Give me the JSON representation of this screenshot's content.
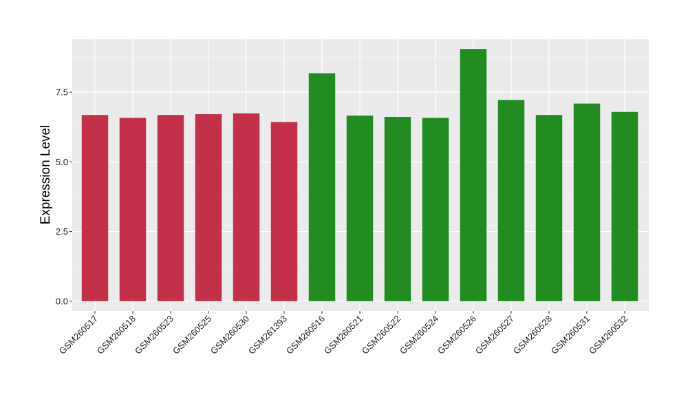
{
  "chart_data": {
    "type": "bar",
    "title": "",
    "xlabel": "",
    "ylabel": "Expression Level",
    "ylim": [
      -0.35,
      9.4
    ],
    "yticks": [
      0,
      2.5,
      5,
      7.5
    ],
    "ytick_labels": [
      "0.0",
      "2.5",
      "5.0",
      "7.5"
    ],
    "grid": true,
    "legend": "none",
    "categories": [
      "GSM260517",
      "GSM260518",
      "GSM260523",
      "GSM260525",
      "GSM260530",
      "GSM261393",
      "GSM260516",
      "GSM260521",
      "GSM260522",
      "GSM260524",
      "GSM260526",
      "GSM260527",
      "GSM260528",
      "GSM260531",
      "GSM260532"
    ],
    "values": [
      6.68,
      6.58,
      6.68,
      6.71,
      6.74,
      6.43,
      8.18,
      6.66,
      6.61,
      6.58,
      9.05,
      7.22,
      6.68,
      7.09,
      6.79
    ],
    "bar_colors": [
      "#c3304a",
      "#c3304a",
      "#c3304a",
      "#c3304a",
      "#c3304a",
      "#c3304a",
      "#228b22",
      "#228b22",
      "#228b22",
      "#228b22",
      "#228b22",
      "#228b22",
      "#228b22",
      "#228b22",
      "#228b22"
    ]
  }
}
